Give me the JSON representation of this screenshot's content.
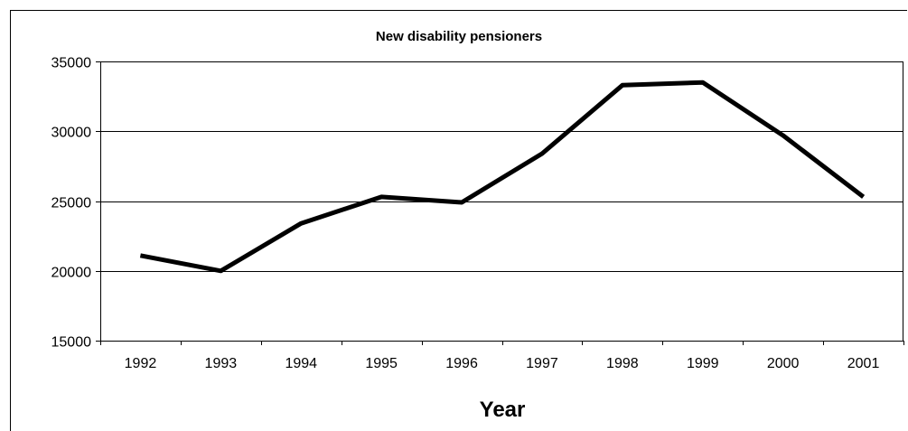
{
  "chart_data": {
    "type": "line",
    "title": "New disability pensioners",
    "xlabel": "Year",
    "ylabel": "",
    "categories": [
      "1992",
      "1993",
      "1994",
      "1995",
      "1996",
      "1997",
      "1998",
      "1999",
      "2000",
      "2001"
    ],
    "series": [
      {
        "values": [
          21100,
          20000,
          23400,
          25300,
          24900,
          28400,
          33300,
          33500,
          29700,
          25300
        ]
      }
    ],
    "ylim": [
      15000,
      35000
    ],
    "yticks": [
      15000,
      20000,
      25000,
      30000,
      35000
    ],
    "grid": true,
    "legend": "none",
    "line_color": "#000000"
  }
}
